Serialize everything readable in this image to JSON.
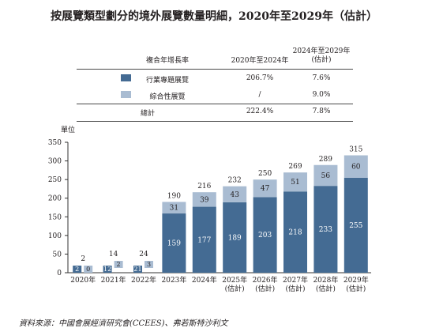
{
  "title": "按展覽類型劃分的境外展覽數量明細，2020年至2029年（估計）",
  "table": {
    "header": [
      "複合年增長率",
      "2020年至2024年",
      "2024年至2029年\n(估計)"
    ],
    "rows": [
      {
        "label": "行業專題展覽",
        "c1": "206.7%",
        "c2": "7.6%",
        "swatch_color": "#446b93"
      },
      {
        "label": "綜合性展覽",
        "c1": "/",
        "c2": "9.0%",
        "swatch_color": "#a9bcd2"
      },
      {
        "label": "總計",
        "c1": "222.4%",
        "c2": "7.8%",
        "swatch_color": null
      }
    ]
  },
  "unit_label": "單位",
  "source": "資料來源：中國會展經濟研究會(CCEES)、弗若斯特沙利文",
  "colors": {
    "industry": "#446b93",
    "comprehensive": "#a9bcd2"
  },
  "chart_data": {
    "type": "bar",
    "stacked": true,
    "categories": [
      "2020年",
      "2021年",
      "2022年",
      "2023年",
      "2024年",
      "2025年\n(估計)",
      "2026年\n(估計)",
      "2027年\n(估計)",
      "2028年\n(估計)",
      "2029年\n(估計)"
    ],
    "series": [
      {
        "name": "行業專題展覽",
        "values": [
          2,
          12,
          21,
          159,
          177,
          189,
          203,
          218,
          233,
          255
        ]
      },
      {
        "name": "綜合性展覽",
        "values": [
          0,
          2,
          3,
          31,
          39,
          43,
          47,
          51,
          56,
          60
        ]
      }
    ],
    "totals": [
      2,
      14,
      24,
      190,
      216,
      232,
      250,
      269,
      289,
      315
    ],
    "ylim": [
      0,
      350
    ],
    "yticks": [
      0,
      50,
      100,
      150,
      200,
      250,
      300,
      350
    ],
    "ylabel": "單位",
    "grid": false
  }
}
